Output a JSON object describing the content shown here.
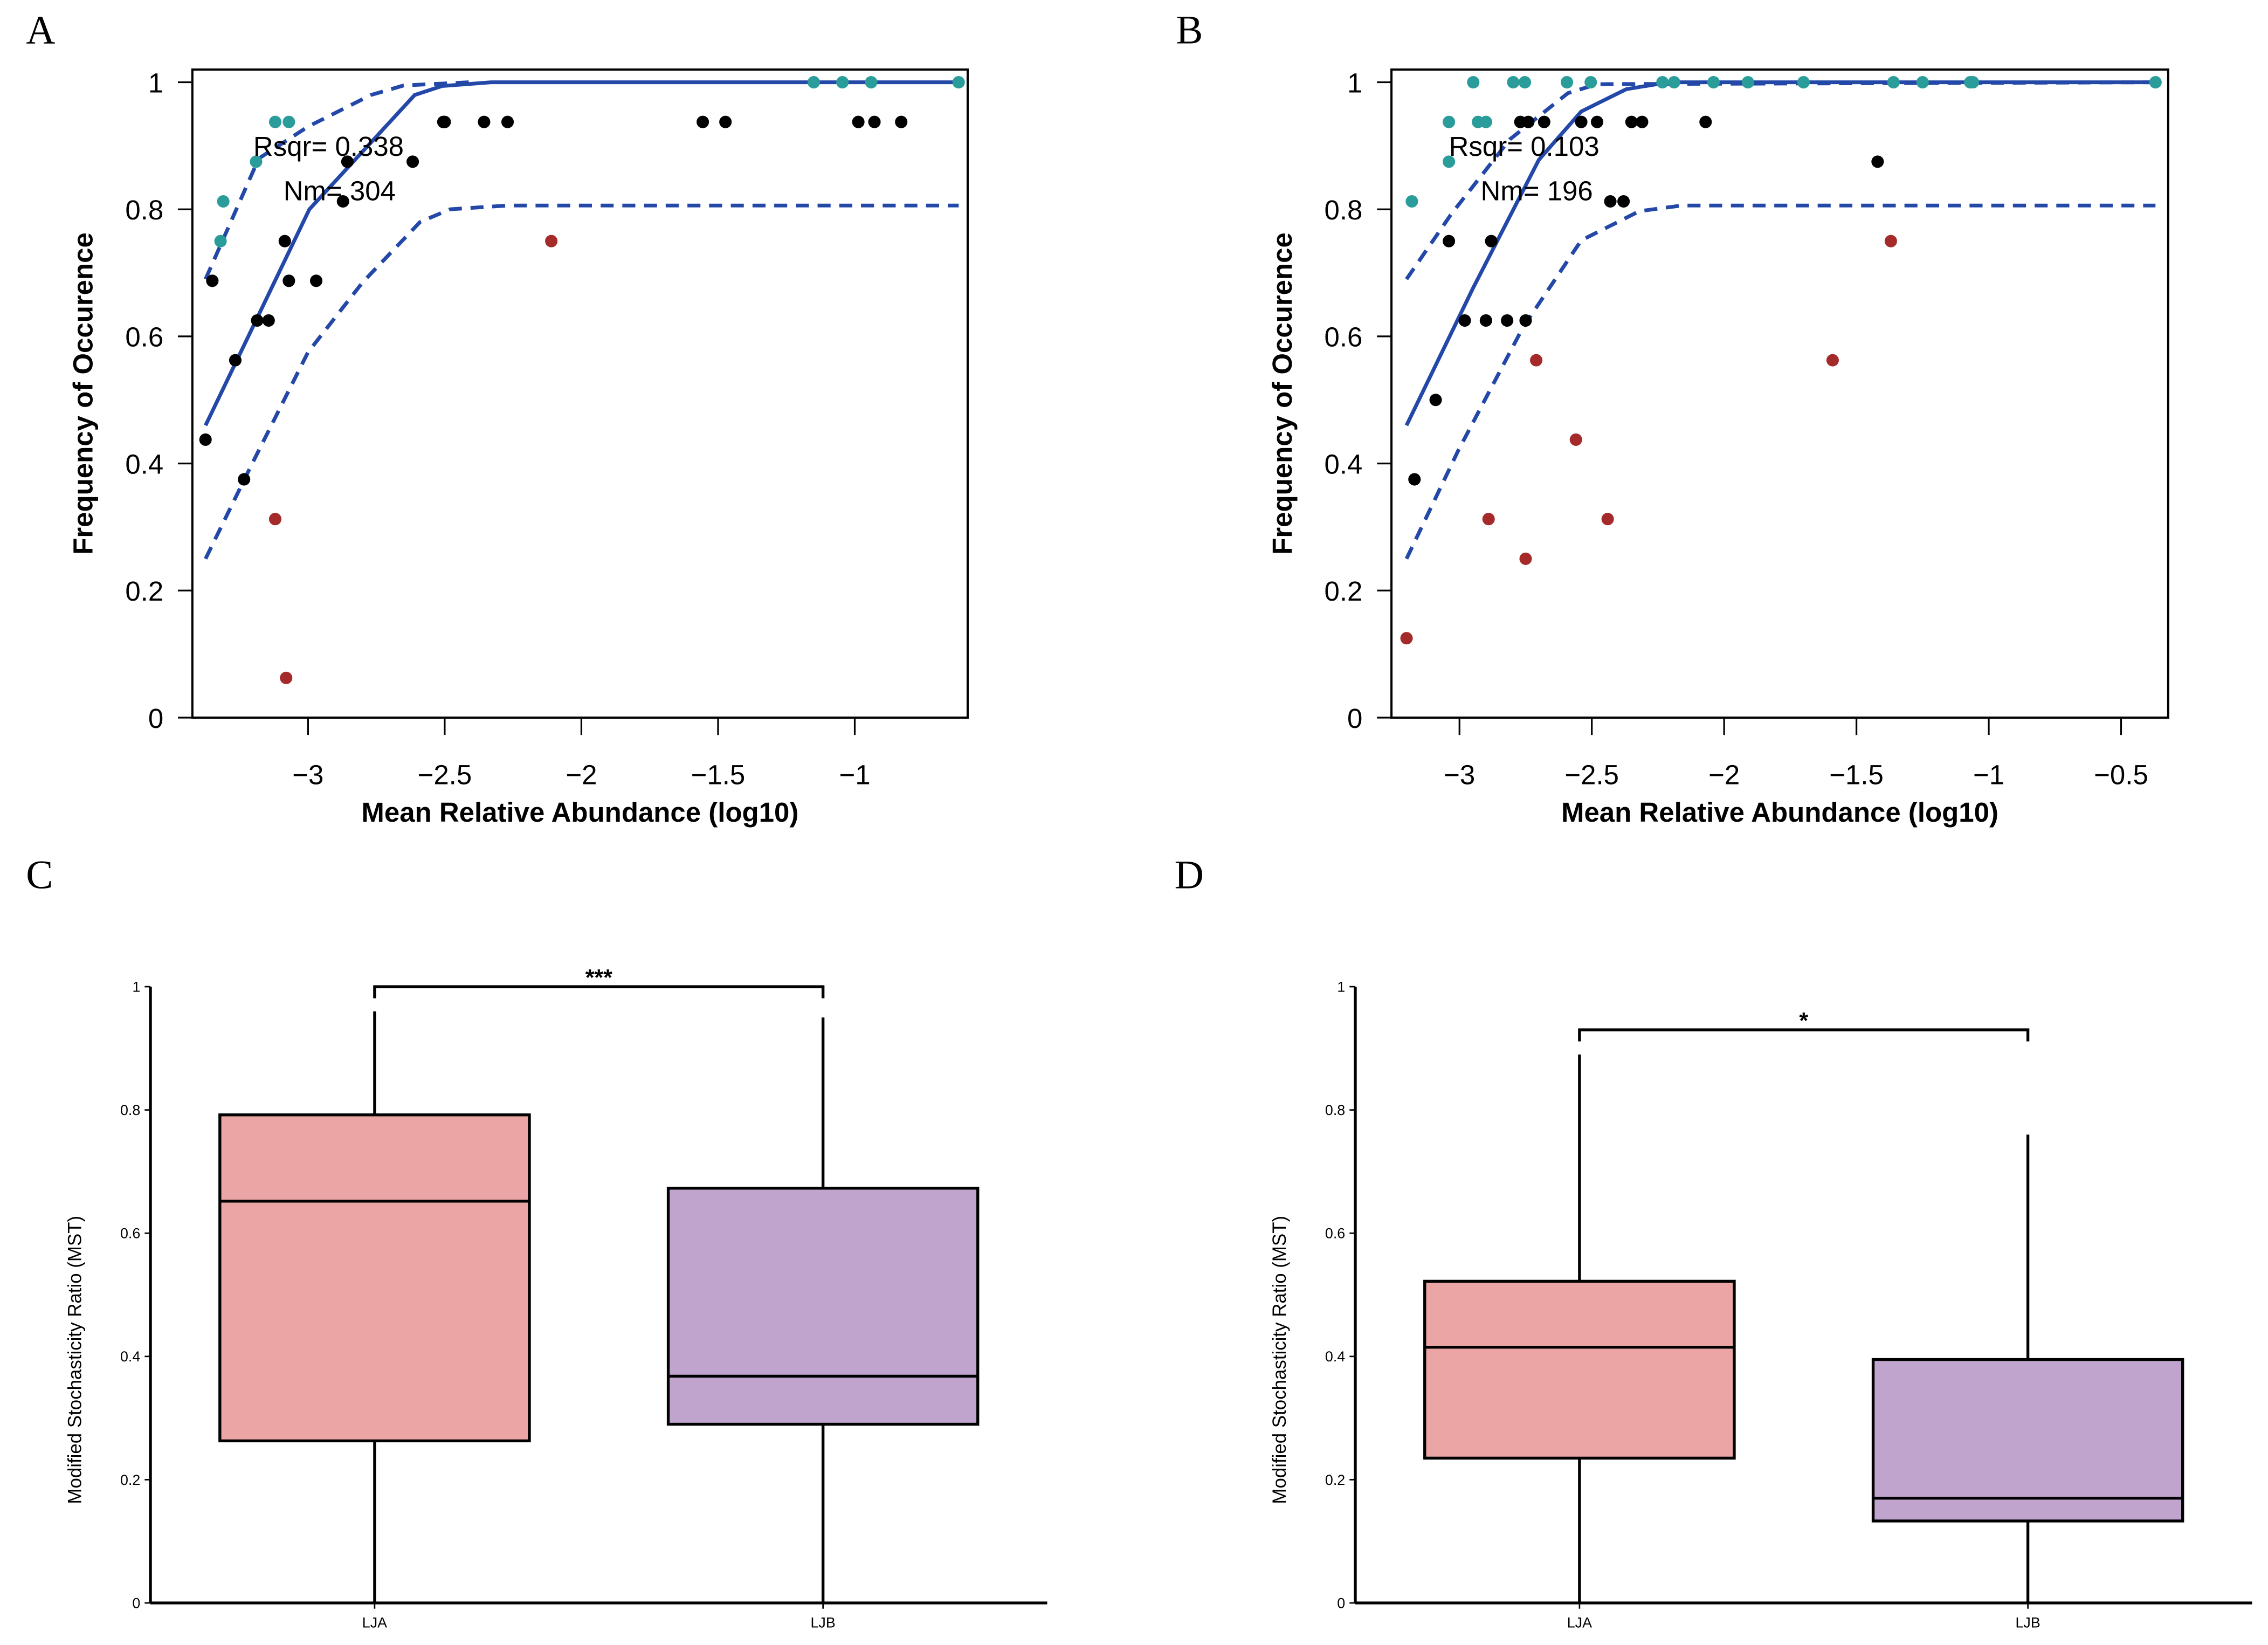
{
  "panel_labels": [
    "A",
    "B",
    "C",
    "D"
  ],
  "colors": {
    "fit_line": "#2348a8",
    "above": "#2a9d9b",
    "within": "#000000",
    "below": "#a52a2a",
    "LJA": "#eba5a5",
    "LJB": "#c0a4cd"
  },
  "chart_data": [
    {
      "type": "scatter",
      "panel": "A",
      "xlabel": "Mean Relative Abundance (log10)",
      "ylabel": "Frequency of Occurence",
      "xlim": [
        -3.423,
        -0.587
      ],
      "ylim": [
        0,
        1.02
      ],
      "xticks": [
        -3,
        -2.5,
        -2,
        -1.5,
        -1
      ],
      "xtick_labels": [
        "−3",
        "−2.5",
        "−2",
        "−1.5",
        "−1"
      ],
      "yticks": [
        0,
        0.2,
        0.4,
        0.6,
        0.8,
        1
      ],
      "ytick_labels": [
        "0",
        "0.2",
        "0.4",
        "0.6",
        "0.8",
        "1"
      ],
      "annotations": [
        {
          "text": "Rsqr= 0.338",
          "x": -3.2,
          "y": 0.9
        },
        {
          "text": "Nm= 304",
          "x": -3.09,
          "y": 0.83
        }
      ],
      "fit": [
        [
          -3.375,
          0.46
        ],
        [
          -2.995,
          0.8
        ],
        [
          -2.61,
          0.98
        ],
        [
          -2.51,
          0.994
        ],
        [
          -2.33,
          1
        ],
        [
          -0.62,
          1
        ]
      ],
      "upper": [
        [
          -3.375,
          0.69
        ],
        [
          -3.18,
          0.88
        ],
        [
          -3.0,
          0.93
        ],
        [
          -2.77,
          0.98
        ],
        [
          -2.65,
          0.995
        ],
        [
          -2.41,
          1
        ]
      ],
      "lower": [
        [
          -3.375,
          0.25
        ],
        [
          -3.21,
          0.395
        ],
        [
          -3.0,
          0.575
        ],
        [
          -2.8,
          0.685
        ],
        [
          -2.59,
          0.78
        ],
        [
          -2.48,
          0.8
        ],
        [
          -2.27,
          0.806
        ],
        [
          -0.62,
          0.806
        ]
      ],
      "points": {
        "above": [
          [
            -1.15,
            1
          ],
          [
            -1.045,
            1
          ],
          [
            -0.94,
            1
          ],
          [
            -0.62,
            1
          ],
          [
            -3.12,
            0.9375
          ],
          [
            -3.07,
            0.9375
          ],
          [
            -3.19,
            0.875
          ],
          [
            -3.31,
            0.8125
          ],
          [
            -3.32,
            0.75
          ]
        ],
        "within": [
          [
            -2.505,
            0.9375
          ],
          [
            -2.5,
            0.9375
          ],
          [
            -2.356,
            0.9375
          ],
          [
            -2.27,
            0.9375
          ],
          [
            -1.556,
            0.9375
          ],
          [
            -1.473,
            0.9375
          ],
          [
            -0.987,
            0.9375
          ],
          [
            -0.928,
            0.9375
          ],
          [
            -0.83,
            0.9375
          ],
          [
            -2.856,
            0.875
          ],
          [
            -2.617,
            0.875
          ],
          [
            -2.872,
            0.8125
          ],
          [
            -3.085,
            0.75
          ],
          [
            -3.35,
            0.6875
          ],
          [
            -3.07,
            0.6875
          ],
          [
            -2.97,
            0.6875
          ],
          [
            -3.186,
            0.625
          ],
          [
            -3.144,
            0.625
          ],
          [
            -3.266,
            0.5625
          ],
          [
            -3.375,
            0.4375
          ],
          [
            -3.234,
            0.375
          ]
        ],
        "below": [
          [
            -2.11,
            0.75
          ],
          [
            -3.12,
            0.3125
          ],
          [
            -3.08,
            0.0625
          ]
        ]
      }
    },
    {
      "type": "scatter",
      "panel": "B",
      "xlabel": "Mean Relative Abundance (log10)",
      "ylabel": "Frequency of Occurence",
      "xlim": [
        -3.257,
        -0.322
      ],
      "ylim": [
        0,
        1.02
      ],
      "xticks": [
        -3,
        -2.5,
        -2,
        -1.5,
        -1,
        -0.5
      ],
      "xtick_labels": [
        "−3",
        "−2.5",
        "−2",
        "−1.5",
        "−1",
        "−0.5"
      ],
      "yticks": [
        0,
        0.2,
        0.4,
        0.6,
        0.8,
        1
      ],
      "ytick_labels": [
        "0",
        "0.2",
        "0.4",
        "0.6",
        "0.8",
        "1"
      ],
      "annotations": [
        {
          "text": "Rsqr= 0.103",
          "x": -3.04,
          "y": 0.9
        },
        {
          "text": "Nm= 196",
          "x": -2.92,
          "y": 0.83
        }
      ],
      "fit": [
        [
          -3.2,
          0.46
        ],
        [
          -2.95,
          0.675
        ],
        [
          -2.7,
          0.878
        ],
        [
          -2.54,
          0.954
        ],
        [
          -2.37,
          0.989
        ],
        [
          -2.21,
          1
        ],
        [
          -0.37,
          1
        ]
      ],
      "upper": [
        [
          -3.2,
          0.69
        ],
        [
          -3.03,
          0.793
        ],
        [
          -2.81,
          0.91
        ],
        [
          -2.59,
          0.983
        ],
        [
          -2.48,
          0.997
        ],
        [
          -0.37,
          1
        ]
      ],
      "lower": [
        [
          -3.2,
          0.25
        ],
        [
          -3.005,
          0.42
        ],
        [
          -2.76,
          0.614
        ],
        [
          -2.54,
          0.751
        ],
        [
          -2.32,
          0.797
        ],
        [
          -2.16,
          0.806
        ],
        [
          -0.37,
          0.806
        ]
      ],
      "points": {
        "above": [
          [
            -2.948,
            1
          ],
          [
            -2.797,
            1
          ],
          [
            -2.753,
            1
          ],
          [
            -2.594,
            1
          ],
          [
            -2.504,
            1
          ],
          [
            -2.233,
            1
          ],
          [
            -2.189,
            1
          ],
          [
            -2.04,
            1
          ],
          [
            -1.91,
            1
          ],
          [
            -1.7,
            1
          ],
          [
            -1.36,
            1
          ],
          [
            -1.25,
            1
          ],
          [
            -1.07,
            1
          ],
          [
            -1.06,
            1
          ],
          [
            -0.37,
            1
          ],
          [
            -3.04,
            0.9375
          ],
          [
            -2.93,
            0.9375
          ],
          [
            -2.9,
            0.9375
          ],
          [
            -3.04,
            0.875
          ],
          [
            -3.18,
            0.8125
          ]
        ],
        "within": [
          [
            -2.77,
            0.9375
          ],
          [
            -2.74,
            0.9375
          ],
          [
            -2.68,
            0.9375
          ],
          [
            -2.54,
            0.9375
          ],
          [
            -2.48,
            0.9375
          ],
          [
            -2.35,
            0.9375
          ],
          [
            -2.31,
            0.9375
          ],
          [
            -2.07,
            0.9375
          ],
          [
            -1.42,
            0.875
          ],
          [
            -2.43,
            0.8125
          ],
          [
            -2.38,
            0.8125
          ],
          [
            -3.04,
            0.75
          ],
          [
            -2.88,
            0.75
          ],
          [
            -2.98,
            0.625
          ],
          [
            -2.9,
            0.625
          ],
          [
            -2.82,
            0.625
          ],
          [
            -2.75,
            0.625
          ],
          [
            -3.09,
            0.5
          ],
          [
            -3.17,
            0.375
          ]
        ],
        "below": [
          [
            -1.37,
            0.75
          ],
          [
            -2.71,
            0.5625
          ],
          [
            -1.59,
            0.5625
          ],
          [
            -2.56,
            0.4375
          ],
          [
            -2.89,
            0.3125
          ],
          [
            -2.44,
            0.3125
          ],
          [
            -2.75,
            0.25
          ],
          [
            -3.2,
            0.125
          ]
        ]
      }
    },
    {
      "type": "box",
      "panel": "C",
      "ylabel": "Modified Stochasticity Ratio  (MST)",
      "ylim": [
        0,
        1
      ],
      "yticks": [
        0,
        0.2,
        0.4,
        0.6,
        0.8,
        1
      ],
      "ytick_labels": [
        "0",
        "0.2",
        "0.4",
        "0.6",
        "0.8",
        "1"
      ],
      "categories": [
        "LJA",
        "LJB"
      ],
      "boxes": [
        {
          "min": 0,
          "q1": 0.263,
          "median": 0.652,
          "q3": 0.792,
          "max": 0.96
        },
        {
          "min": 0,
          "q1": 0.29,
          "median": 0.368,
          "q3": 0.673,
          "max": 0.95
        }
      ],
      "significance": {
        "label": "***",
        "y": 1.0
      }
    },
    {
      "type": "box",
      "panel": "D",
      "ylabel": "Modified Stochasticity Ratio (MST)",
      "ylim": [
        0,
        1
      ],
      "yticks": [
        0,
        0.2,
        0.4,
        0.6,
        0.8,
        1
      ],
      "ytick_labels": [
        "0",
        "0.2",
        "0.4",
        "0.6",
        "0.8",
        "1"
      ],
      "categories": [
        "LJA",
        "LJB"
      ],
      "boxes": [
        {
          "min": 0,
          "q1": 0.235,
          "median": 0.415,
          "q3": 0.522,
          "max": 0.89
        },
        {
          "min": 0,
          "q1": 0.133,
          "median": 0.17,
          "q3": 0.395,
          "max": 0.76
        }
      ],
      "significance": {
        "label": "*",
        "y": 0.93
      }
    }
  ]
}
